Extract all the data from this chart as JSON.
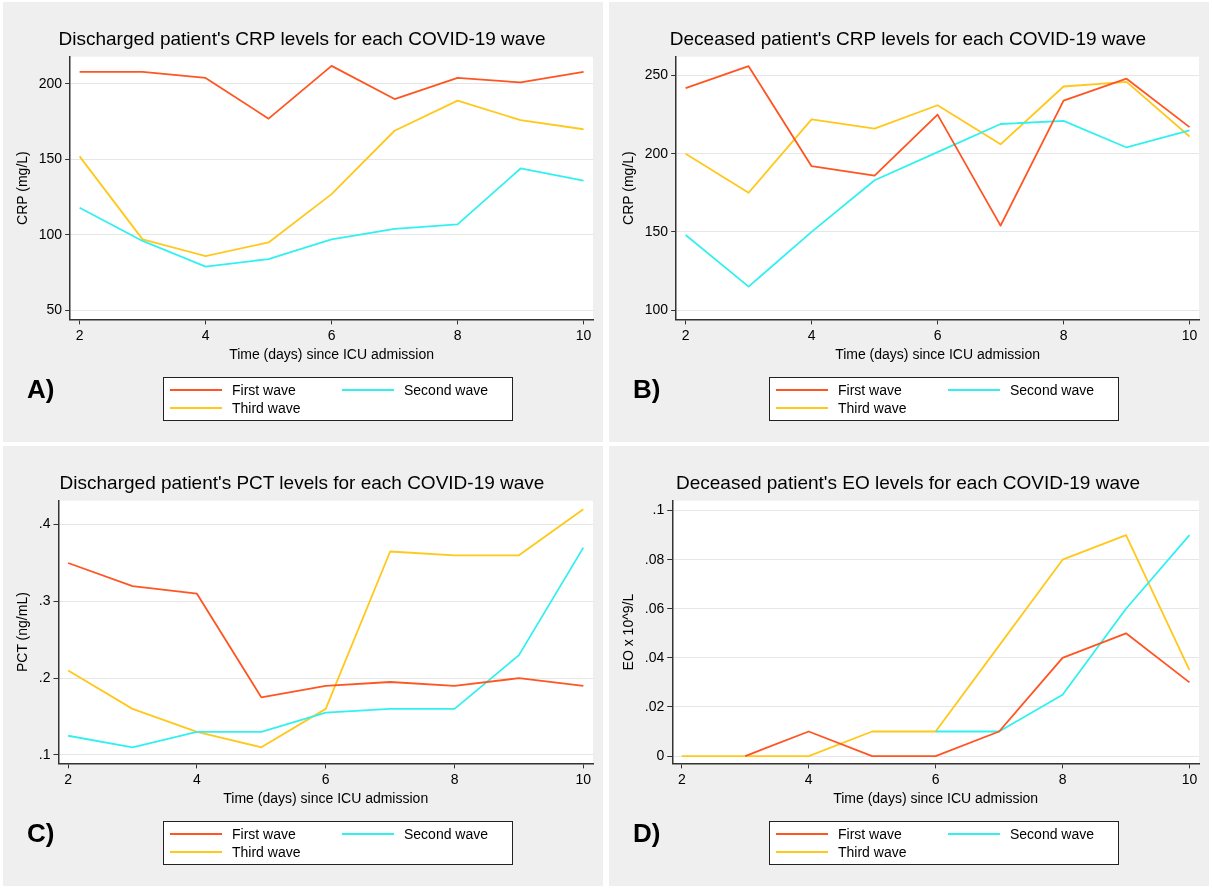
{
  "chart_data": [
    {
      "type": "line",
      "title": "Discharged patient's CRP levels for each COVID-19 wave",
      "xlabel": "Time (days) since ICU admission",
      "ylabel": "CRP (mg/L)",
      "x": [
        2,
        3,
        4,
        5,
        6,
        7,
        8,
        9,
        10
      ],
      "xlim": [
        1.85,
        10.15
      ],
      "xticks": [
        2,
        4,
        6,
        8,
        10
      ],
      "ylim": [
        44,
        218
      ],
      "yticks": [
        50,
        100,
        150,
        200
      ],
      "grid": "y",
      "legend": "bottom",
      "marker": "none",
      "line_style": "solid",
      "annotations": [
        "A)"
      ],
      "series": [
        {
          "name": "First wave",
          "color": "#ff5522",
          "values": [
            208,
            208,
            204,
            177,
            212,
            190,
            204,
            201,
            208
          ]
        },
        {
          "name": "Second wave",
          "color": "#33f0f0",
          "values": [
            118,
            96,
            79,
            84,
            97,
            104,
            107,
            144,
            136
          ]
        },
        {
          "name": "Third wave",
          "color": "#ffc81a",
          "values": [
            152,
            97,
            86,
            95,
            127,
            169,
            189,
            176,
            170
          ]
        }
      ]
    },
    {
      "type": "line",
      "title": "Deceased patient's CRP levels for each COVID-19 wave",
      "xlabel": "Time (days) since ICU admission",
      "ylabel": "CRP (mg/L)",
      "x": [
        2,
        3,
        4,
        5,
        6,
        7,
        8,
        9,
        10
      ],
      "xlim": [
        1.85,
        10.15
      ],
      "xticks": [
        2,
        4,
        6,
        8,
        10
      ],
      "ylim": [
        94,
        262
      ],
      "yticks": [
        100,
        150,
        200,
        250
      ],
      "grid": "y",
      "legend": "bottom",
      "marker": "none",
      "line_style": "solid",
      "annotations": [
        "B)"
      ],
      "series": [
        {
          "name": "First wave",
          "color": "#ff5522",
          "values": [
            242,
            256,
            192,
            186,
            225,
            154,
            234,
            248,
            217
          ]
        },
        {
          "name": "Second wave",
          "color": "#33f0f0",
          "values": [
            148,
            115,
            150,
            183,
            201,
            219,
            221,
            204,
            215
          ]
        },
        {
          "name": "Third wave",
          "color": "#ffc81a",
          "values": [
            200,
            175,
            222,
            216,
            231,
            206,
            243,
            246,
            211
          ]
        }
      ]
    },
    {
      "type": "line",
      "title": "Discharged patient's PCT levels for each COVID-19 wave",
      "xlabel": "Time (days) since ICU admission",
      "ylabel": "PCT (ng/mL)",
      "x": [
        2,
        3,
        4,
        5,
        6,
        7,
        8,
        9,
        10
      ],
      "xlim": [
        1.85,
        10.15
      ],
      "xticks": [
        2,
        4,
        6,
        8,
        10
      ],
      "ylim": [
        0.089,
        0.431
      ],
      "yticks": [
        {
          "value": 0.1,
          "label": ".1"
        },
        {
          "value": 0.2,
          "label": ".2"
        },
        {
          "value": 0.3,
          "label": ".3"
        },
        {
          "value": 0.4,
          "label": ".4"
        }
      ],
      "grid": "y",
      "legend": "bottom",
      "marker": "none",
      "line_style": "solid",
      "annotations": [
        "C)"
      ],
      "series": [
        {
          "name": "First wave",
          "color": "#ff5522",
          "values": [
            0.35,
            0.32,
            0.31,
            0.175,
            0.19,
            0.195,
            0.19,
            0.2,
            0.19
          ]
        },
        {
          "name": "Second wave",
          "color": "#33f0f0",
          "values": [
            0.125,
            0.11,
            0.13,
            0.13,
            0.155,
            0.16,
            0.16,
            0.23,
            0.37
          ]
        },
        {
          "name": "Third wave",
          "color": "#ffc81a",
          "values": [
            0.21,
            0.16,
            0.13,
            0.11,
            0.16,
            0.365,
            0.36,
            0.36,
            0.42
          ]
        }
      ]
    },
    {
      "type": "line",
      "title": "Deceased patient's EO levels for each COVID-19 wave",
      "xlabel": "Time (days) since ICU admission",
      "ylabel": "EO x 10^9/L",
      "x": [
        2,
        3,
        4,
        5,
        6,
        7,
        8,
        9,
        10
      ],
      "xlim": [
        1.85,
        10.15
      ],
      "xticks": [
        2,
        4,
        6,
        8,
        10
      ],
      "ylim": [
        -0.003,
        0.104
      ],
      "yticks": [
        0,
        {
          "value": 0.02,
          "label": ".02"
        },
        {
          "value": 0.04,
          "label": ".04"
        },
        {
          "value": 0.06,
          "label": ".06"
        },
        {
          "value": 0.08,
          "label": ".08"
        },
        {
          "value": 0.1,
          "label": ".1"
        }
      ],
      "grid": "y",
      "legend": "bottom",
      "marker": "none",
      "line_style": "solid",
      "annotations": [
        "D)"
      ],
      "series": [
        {
          "name": "First wave",
          "color": "#ff5522",
          "values": [
            null,
            0,
            0.01,
            0,
            0,
            0.01,
            0.04,
            0.05,
            0.03
          ]
        },
        {
          "name": "Second wave",
          "color": "#33f0f0",
          "values": [
            null,
            null,
            null,
            null,
            0.01,
            0.01,
            0.025,
            0.06,
            0.09
          ]
        },
        {
          "name": "Third wave",
          "color": "#ffc81a",
          "values": [
            0,
            0,
            0,
            0.01,
            0.01,
            0.045,
            0.08,
            0.09,
            0.035
          ]
        }
      ]
    }
  ]
}
